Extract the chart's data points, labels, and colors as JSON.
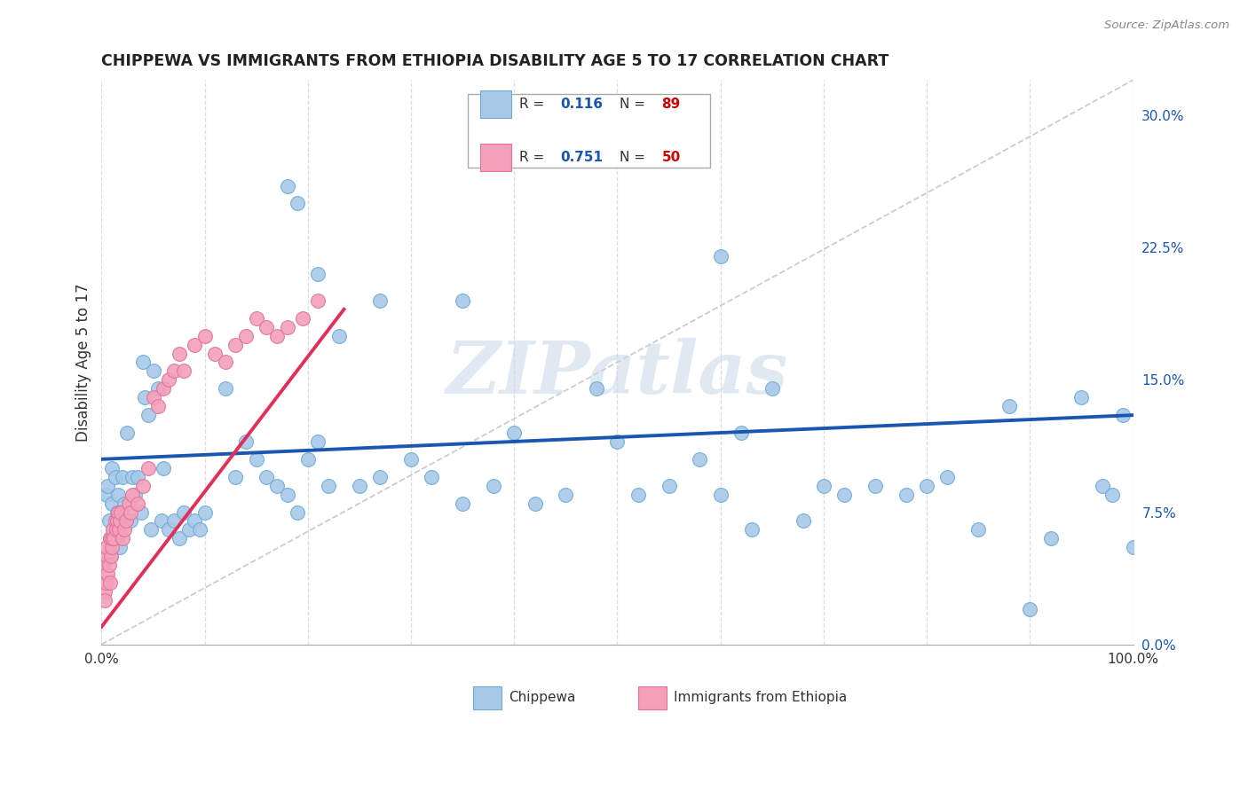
{
  "title": "CHIPPEWA VS IMMIGRANTS FROM ETHIOPIA DISABILITY AGE 5 TO 17 CORRELATION CHART",
  "source": "Source: ZipAtlas.com",
  "ylabel": "Disability Age 5 to 17",
  "x_min": 0.0,
  "x_max": 1.0,
  "y_min": 0.0,
  "y_max": 0.32,
  "y_ticks_right": [
    0.0,
    0.075,
    0.15,
    0.225,
    0.3
  ],
  "y_tick_labels_right": [
    "0.0%",
    "7.5%",
    "15.0%",
    "22.5%",
    "30.0%"
  ],
  "blue_color": "#a8c8e8",
  "pink_color": "#f4a0b8",
  "blue_line_color": "#1a56b0",
  "pink_line_color": "#e0305a",
  "diag_color": "#cccccc",
  "grid_color": "#dddddd",
  "watermark": "ZIPatlas",
  "legend_label_blue": "Chippewa",
  "legend_label_pink": "Immigrants from Ethiopia",
  "blue_trend_x": [
    0.0,
    1.0
  ],
  "blue_trend_y": [
    0.105,
    0.13
  ],
  "pink_trend_x": [
    0.0,
    0.235
  ],
  "pink_trend_y": [
    0.01,
    0.19
  ],
  "chippewa_x": [
    0.005,
    0.006,
    0.007,
    0.008,
    0.009,
    0.01,
    0.01,
    0.012,
    0.013,
    0.015,
    0.015,
    0.016,
    0.018,
    0.02,
    0.022,
    0.025,
    0.028,
    0.03,
    0.032,
    0.035,
    0.038,
    0.04,
    0.042,
    0.045,
    0.048,
    0.05,
    0.055,
    0.058,
    0.06,
    0.065,
    0.07,
    0.075,
    0.08,
    0.085,
    0.09,
    0.095,
    0.1,
    0.12,
    0.13,
    0.14,
    0.15,
    0.16,
    0.17,
    0.18,
    0.19,
    0.2,
    0.21,
    0.22,
    0.25,
    0.27,
    0.3,
    0.32,
    0.35,
    0.38,
    0.4,
    0.42,
    0.45,
    0.48,
    0.5,
    0.52,
    0.55,
    0.58,
    0.6,
    0.62,
    0.63,
    0.65,
    0.68,
    0.7,
    0.72,
    0.75,
    0.78,
    0.8,
    0.82,
    0.85,
    0.88,
    0.9,
    0.92,
    0.95,
    0.97,
    0.98,
    0.99,
    1.0,
    0.18,
    0.19,
    0.21,
    0.23,
    0.27,
    0.35,
    0.6
  ],
  "chippewa_y": [
    0.085,
    0.09,
    0.07,
    0.06,
    0.05,
    0.08,
    0.1,
    0.065,
    0.095,
    0.06,
    0.075,
    0.085,
    0.055,
    0.095,
    0.08,
    0.12,
    0.07,
    0.095,
    0.085,
    0.095,
    0.075,
    0.16,
    0.14,
    0.13,
    0.065,
    0.155,
    0.145,
    0.07,
    0.1,
    0.065,
    0.07,
    0.06,
    0.075,
    0.065,
    0.07,
    0.065,
    0.075,
    0.145,
    0.095,
    0.115,
    0.105,
    0.095,
    0.09,
    0.085,
    0.075,
    0.105,
    0.115,
    0.09,
    0.09,
    0.095,
    0.105,
    0.095,
    0.08,
    0.09,
    0.12,
    0.08,
    0.085,
    0.145,
    0.115,
    0.085,
    0.09,
    0.105,
    0.085,
    0.12,
    0.065,
    0.145,
    0.07,
    0.09,
    0.085,
    0.09,
    0.085,
    0.09,
    0.095,
    0.065,
    0.135,
    0.02,
    0.06,
    0.14,
    0.09,
    0.085,
    0.13,
    0.055,
    0.26,
    0.25,
    0.21,
    0.175,
    0.195,
    0.195,
    0.22
  ],
  "ethiopia_x": [
    0.002,
    0.003,
    0.004,
    0.005,
    0.005,
    0.006,
    0.007,
    0.008,
    0.008,
    0.009,
    0.01,
    0.01,
    0.011,
    0.012,
    0.013,
    0.014,
    0.015,
    0.016,
    0.017,
    0.018,
    0.019,
    0.02,
    0.022,
    0.024,
    0.026,
    0.028,
    0.03,
    0.035,
    0.04,
    0.045,
    0.05,
    0.055,
    0.06,
    0.065,
    0.07,
    0.075,
    0.08,
    0.09,
    0.1,
    0.11,
    0.12,
    0.13,
    0.14,
    0.15,
    0.16,
    0.17,
    0.18,
    0.195,
    0.21,
    0.003
  ],
  "ethiopia_y": [
    0.045,
    0.03,
    0.035,
    0.05,
    0.055,
    0.04,
    0.045,
    0.035,
    0.06,
    0.05,
    0.055,
    0.06,
    0.065,
    0.06,
    0.07,
    0.065,
    0.07,
    0.075,
    0.065,
    0.07,
    0.075,
    0.06,
    0.065,
    0.07,
    0.08,
    0.075,
    0.085,
    0.08,
    0.09,
    0.1,
    0.14,
    0.135,
    0.145,
    0.15,
    0.155,
    0.165,
    0.155,
    0.17,
    0.175,
    0.165,
    0.16,
    0.17,
    0.175,
    0.185,
    0.18,
    0.175,
    0.18,
    0.185,
    0.195,
    0.025
  ]
}
